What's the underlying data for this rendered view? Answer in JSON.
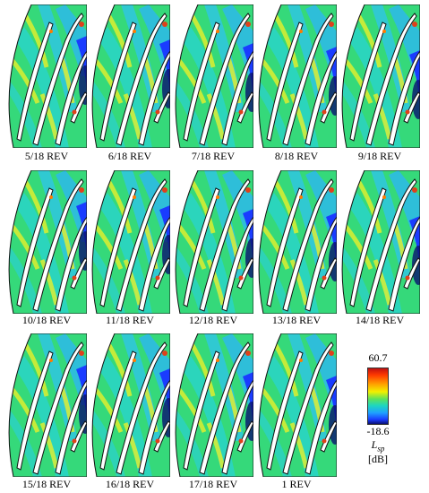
{
  "panels": [
    {
      "caption": "5/18 REV"
    },
    {
      "caption": "6/18 REV"
    },
    {
      "caption": "7/18 REV"
    },
    {
      "caption": "8/18 REV"
    },
    {
      "caption": "9/18 REV"
    },
    {
      "caption": "10/18 REV"
    },
    {
      "caption": "11/18 REV"
    },
    {
      "caption": "12/18 REV"
    },
    {
      "caption": "13/18 REV"
    },
    {
      "caption": "14/18 REV"
    },
    {
      "caption": "15/18 REV"
    },
    {
      "caption": "16/18 REV"
    },
    {
      "caption": "17/18 REV"
    },
    {
      "caption": "1 REV"
    }
  ],
  "colorbar": {
    "max": "60.7",
    "min": "-18.6",
    "variable": "L",
    "subscript": "sp",
    "unit": "[dB]",
    "colors": [
      "#c01010",
      "#ff9f00",
      "#f2f000",
      "#5ee35a",
      "#1ed6c0",
      "#1fa0ff",
      "#0a1070"
    ]
  }
}
